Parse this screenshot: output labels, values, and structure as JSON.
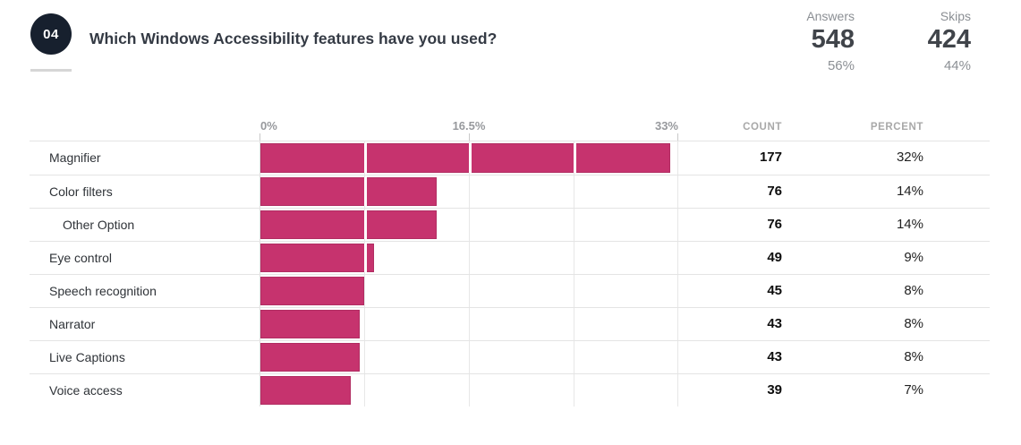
{
  "question": {
    "number": "04",
    "title": "Which Windows Accessibility features have you used?"
  },
  "stats": {
    "answers_label": "Answers",
    "answers_value": "548",
    "answers_percent": "56%",
    "skips_label": "Skips",
    "skips_value": "424",
    "skips_percent": "44%"
  },
  "chart_data": {
    "type": "bar",
    "orientation": "horizontal",
    "title": "Which Windows Accessibility features have you used?",
    "total_answers": 548,
    "bar_color": "#c6336e",
    "axis": {
      "min": 0,
      "max": 33,
      "tick_labels": [
        "0%",
        "16.5%",
        "33%"
      ],
      "gridline_step_percent": 8.25,
      "grid": true
    },
    "columns": {
      "count": "COUNT",
      "percent": "PERCENT"
    },
    "categories": [
      "Magnifier",
      "Color filters",
      "Other Option",
      "Eye control",
      "Speech recognition",
      "Narrator",
      "Live Captions",
      "Voice access"
    ],
    "values": [
      177,
      76,
      76,
      49,
      45,
      43,
      43,
      39
    ],
    "rows": [
      {
        "label": "Magnifier",
        "count": 177,
        "percent": "32%",
        "indent": false
      },
      {
        "label": "Color filters",
        "count": 76,
        "percent": "14%",
        "indent": false
      },
      {
        "label": "Other Option",
        "count": 76,
        "percent": "14%",
        "indent": true
      },
      {
        "label": "Eye control",
        "count": 49,
        "percent": "9%",
        "indent": false
      },
      {
        "label": "Speech recognition",
        "count": 45,
        "percent": "8%",
        "indent": false
      },
      {
        "label": "Narrator",
        "count": 43,
        "percent": "8%",
        "indent": false
      },
      {
        "label": "Live Captions",
        "count": 43,
        "percent": "8%",
        "indent": false
      },
      {
        "label": "Voice access",
        "count": 39,
        "percent": "7%",
        "indent": false
      }
    ]
  }
}
